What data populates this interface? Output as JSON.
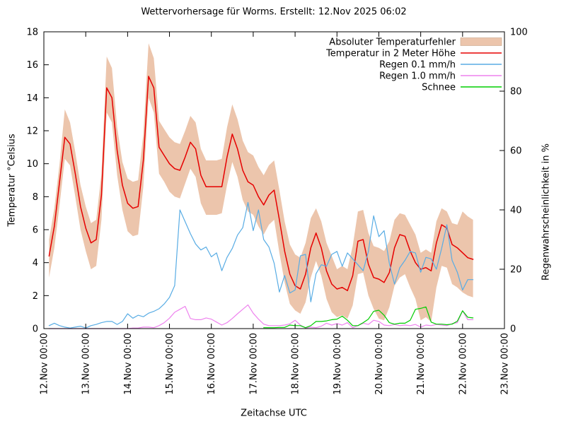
{
  "title": "Wettervorhersage für Worms. Erstellt: 12.Nov 2025 06:02",
  "axes": {
    "x": {
      "title": "Zeitachse UTC",
      "tick_hours": [
        0,
        24,
        48,
        72,
        96,
        120,
        144,
        168,
        192,
        216,
        240,
        264
      ],
      "tick_labels": [
        "12.Nov 00:00",
        "13.Nov 00:00",
        "14.Nov 00:00",
        "15.Nov 00:00",
        "16.Nov 00:00",
        "17.Nov 00:00",
        "18.Nov 00:00",
        "19.Nov 00:00",
        "20.Nov 00:00",
        "21.Nov 00:00",
        "22.Nov 00:00",
        "23.Nov 00:00"
      ],
      "range_hours": [
        0,
        264
      ]
    },
    "y_left": {
      "title": "Temperatur °Celsius",
      "ticks": [
        0,
        2,
        4,
        6,
        8,
        10,
        12,
        14,
        16,
        18
      ],
      "range": [
        0,
        18
      ]
    },
    "y_right": {
      "title": "Regenwahrscheinlichkeit in %",
      "ticks": [
        0,
        20,
        40,
        60,
        80,
        100
      ],
      "range": [
        0,
        100
      ]
    }
  },
  "legend": [
    {
      "label": "Absoluter Temperaturfehler",
      "type": "band",
      "color": "#ecc5ac"
    },
    {
      "label": "Temperatur in 2 Meter Höhe",
      "type": "line",
      "color": "#e60000"
    },
    {
      "label": "Regen 0.1 mm/h",
      "type": "line",
      "color": "#58ace4"
    },
    {
      "label": "Regen 1.0 mm/h",
      "type": "line",
      "color": "#ee82ee"
    },
    {
      "label": "Schnee",
      "type": "line",
      "color": "#00cd00"
    }
  ],
  "chart_data": {
    "type": "line",
    "title": "Wettervorhersage für Worms. Erstellt: 12.Nov 2025 06:02",
    "xlabel": "Zeitachse UTC",
    "ylabel_left": "Temperatur °Celsius",
    "ylabel_right": "Regenwahrscheinlichkeit in %",
    "ylim_left": [
      0,
      18
    ],
    "ylim_right": [
      0,
      100
    ],
    "x_unit": "hours since 12.Nov 2025 00:00 UTC",
    "x_start_hour": 3,
    "x_step_hours": 3,
    "series": [
      {
        "name": "Absoluter Temperaturfehler",
        "axis": "left",
        "style": "band",
        "color": "#ecc5ac",
        "upper": [
          5.4,
          7.3,
          10.0,
          13.3,
          12.5,
          10.7,
          8.7,
          7.4,
          6.4,
          6.6,
          9.4,
          16.5,
          15.8,
          12.2,
          10.1,
          9.1,
          8.9,
          9.0,
          11.8,
          17.3,
          16.4,
          12.6,
          12.1,
          11.6,
          11.3,
          11.2,
          12.0,
          12.9,
          12.5,
          10.9,
          10.2,
          10.2,
          10.2,
          10.3,
          12.2,
          13.6,
          12.7,
          11.4,
          10.7,
          10.5,
          9.8,
          9.3,
          9.9,
          10.2,
          8.4,
          6.5,
          5.1,
          4.5,
          4.3,
          5.2,
          6.7,
          7.3,
          6.5,
          5.2,
          4.4,
          3.6,
          3.8,
          3.6,
          5.0,
          7.1,
          7.2,
          5.8,
          5.0,
          4.9,
          4.7,
          5.3,
          6.6,
          7.0,
          6.9,
          6.3,
          5.7,
          4.6,
          4.8,
          4.6,
          6.5,
          7.3,
          7.1,
          6.4,
          6.3,
          7.1,
          6.8,
          6.6
        ],
        "lower": [
          3.1,
          4.9,
          7.5,
          10.3,
          9.9,
          8.0,
          6.0,
          4.7,
          3.6,
          3.8,
          6.6,
          13.1,
          12.5,
          9.3,
          7.2,
          5.9,
          5.6,
          5.7,
          8.6,
          14.0,
          13.1,
          9.4,
          8.9,
          8.3,
          8.0,
          7.9,
          8.8,
          9.7,
          9.2,
          7.6,
          6.9,
          6.9,
          6.9,
          7.0,
          8.7,
          10.1,
          9.2,
          7.8,
          7.1,
          6.9,
          6.2,
          5.7,
          6.3,
          6.6,
          4.6,
          2.8,
          1.5,
          1.1,
          0.9,
          1.6,
          3.1,
          4.1,
          3.2,
          1.8,
          1.0,
          0.7,
          0.8,
          0.6,
          1.4,
          3.3,
          3.4,
          2.0,
          1.2,
          0.6,
          0.5,
          1.3,
          2.6,
          3.1,
          3.3,
          2.5,
          1.8,
          0.5,
          0.7,
          0.4,
          2.5,
          3.8,
          3.7,
          2.7,
          2.5,
          2.2,
          2.0,
          1.9
        ]
      },
      {
        "name": "Temperatur in 2 Meter Höhe",
        "axis": "left",
        "style": "line",
        "color": "#e60000",
        "values": [
          4.4,
          6.2,
          8.9,
          11.6,
          11.2,
          9.4,
          7.4,
          6.1,
          5.2,
          5.4,
          8.1,
          14.6,
          14.0,
          10.8,
          8.7,
          7.6,
          7.3,
          7.4,
          10.2,
          15.3,
          14.6,
          11.0,
          10.5,
          10.0,
          9.7,
          9.6,
          10.4,
          11.3,
          10.9,
          9.3,
          8.6,
          8.6,
          8.6,
          8.6,
          10.4,
          11.8,
          10.9,
          9.6,
          8.9,
          8.7,
          8.0,
          7.5,
          8.1,
          8.4,
          6.6,
          4.7,
          3.3,
          2.6,
          2.4,
          3.3,
          4.9,
          5.8,
          4.9,
          3.5,
          2.7,
          2.4,
          2.5,
          2.3,
          3.2,
          5.3,
          5.4,
          3.9,
          3.1,
          3.0,
          2.8,
          3.4,
          4.9,
          5.7,
          5.6,
          4.7,
          4.0,
          3.6,
          3.7,
          3.5,
          5.2,
          6.3,
          6.1,
          5.1,
          4.9,
          4.6,
          4.3,
          4.2
        ]
      },
      {
        "name": "Regen 0.1 mm/h",
        "axis": "right",
        "style": "line",
        "color": "#58ace4",
        "values": [
          1.0,
          1.8,
          1.0,
          0.5,
          0.2,
          0.5,
          0.8,
          0.2,
          1.0,
          1.4,
          2.0,
          2.4,
          2.4,
          1.4,
          2.4,
          5.0,
          3.5,
          4.5,
          4.0,
          5.2,
          5.8,
          6.7,
          8.3,
          10.5,
          14.5,
          40.0,
          36.0,
          32.0,
          28.5,
          26.5,
          27.5,
          24.2,
          25.5,
          19.5,
          24.0,
          27.0,
          31.5,
          34.0,
          42.5,
          33.0,
          40.0,
          30.0,
          27.5,
          22.0,
          12.3,
          17.9,
          12.0,
          13.0,
          24.5,
          25.0,
          9.0,
          18.5,
          21.5,
          21.0,
          25.0,
          26.0,
          21.0,
          25.5,
          23.5,
          21.5,
          19.5,
          26.0,
          38.0,
          31.0,
          33.0,
          22.0,
          15.0,
          20.5,
          23.0,
          26.0,
          25.5,
          19.0,
          24.0,
          23.5,
          20.0,
          27.0,
          35.0,
          23.0,
          19.0,
          13.0,
          16.5,
          16.5
        ]
      },
      {
        "name": "Regen 1.0 mm/h",
        "axis": "right",
        "style": "line",
        "color": "#ee82ee",
        "values": [
          0,
          0,
          0,
          0,
          0,
          0,
          0,
          0,
          0,
          0,
          0,
          0,
          0,
          0,
          0,
          0,
          0.2,
          0.2,
          0.5,
          0.5,
          0.3,
          1.0,
          2.0,
          3.5,
          5.5,
          6.5,
          7.5,
          3.4,
          3.0,
          3.0,
          3.6,
          3.2,
          2.2,
          1.2,
          2.0,
          3.4,
          5.0,
          6.5,
          8.0,
          5.2,
          3.2,
          1.5,
          1.0,
          1.0,
          1.0,
          1.2,
          1.6,
          2.8,
          1.2,
          0.2,
          0.5,
          0.3,
          0.8,
          1.8,
          1.2,
          1.7,
          1.2,
          2.0,
          0.3,
          1.0,
          1.8,
          1.4,
          2.8,
          2.4,
          1.2,
          1.0,
          1.4,
          1.0,
          1.2,
          1.0,
          1.4,
          0.5,
          1.2,
          1.0,
          1.4,
          1.2,
          1.0,
          1.7,
          2.0,
          6.0,
          3.0,
          3.0
        ]
      },
      {
        "name": "Schnee",
        "axis": "right",
        "style": "line",
        "color": "#00cd00",
        "values": [
          null,
          null,
          null,
          null,
          null,
          null,
          null,
          null,
          null,
          null,
          null,
          null,
          null,
          null,
          null,
          null,
          null,
          null,
          null,
          null,
          null,
          null,
          null,
          null,
          null,
          null,
          null,
          null,
          null,
          null,
          null,
          null,
          null,
          null,
          null,
          null,
          null,
          null,
          null,
          null,
          null,
          0.3,
          0.3,
          0.3,
          0.4,
          0.4,
          1.2,
          1.0,
          1.0,
          0.3,
          1.0,
          2.4,
          2.4,
          2.6,
          3.0,
          3.2,
          4.2,
          2.8,
          1.0,
          1.0,
          2.0,
          3.2,
          5.8,
          6.2,
          4.5,
          2.0,
          1.5,
          1.8,
          1.8,
          2.8,
          6.5,
          6.8,
          7.3,
          2.2,
          1.5,
          1.5,
          1.3,
          1.5,
          2.5,
          6.0,
          3.8,
          3.6
        ]
      }
    ]
  }
}
